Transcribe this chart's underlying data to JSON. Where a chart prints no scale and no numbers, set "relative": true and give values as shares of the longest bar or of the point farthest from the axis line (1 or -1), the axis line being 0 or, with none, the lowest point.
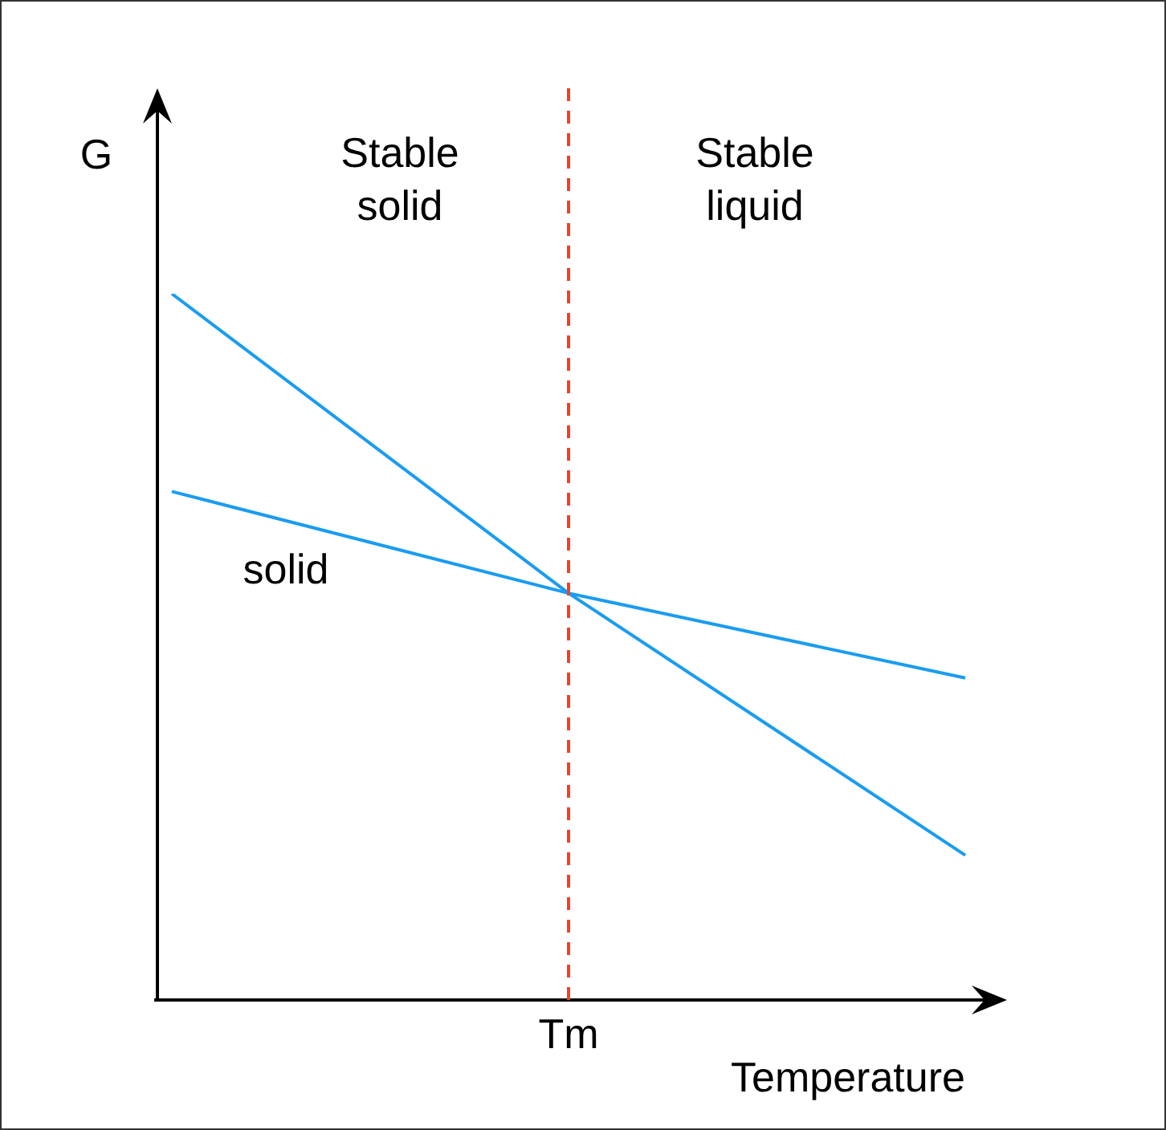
{
  "chart_data": {
    "type": "line",
    "relative": true,
    "xlabel": "Temperature",
    "ylabel": "G",
    "categories": [
      null,
      null,
      null
    ],
    "series": [
      {
        "color": "#1a9cf0",
        "values": [
          1,
          0.576,
          0.205
        ]
      },
      {
        "name": "solid",
        "color": "#1a9cf0",
        "values": [
          0.72,
          0.576,
          0.456
        ]
      }
    ],
    "ref_lines": [
      {
        "axis": "x",
        "value": "Tm",
        "color": "#ff3b1f",
        "line_style": "dashed"
      }
    ],
    "annotations": [
      "Stable\nsolid",
      "Stable\nliquid"
    ],
    "legend": false,
    "marker": "none",
    "line_style": "solid"
  }
}
